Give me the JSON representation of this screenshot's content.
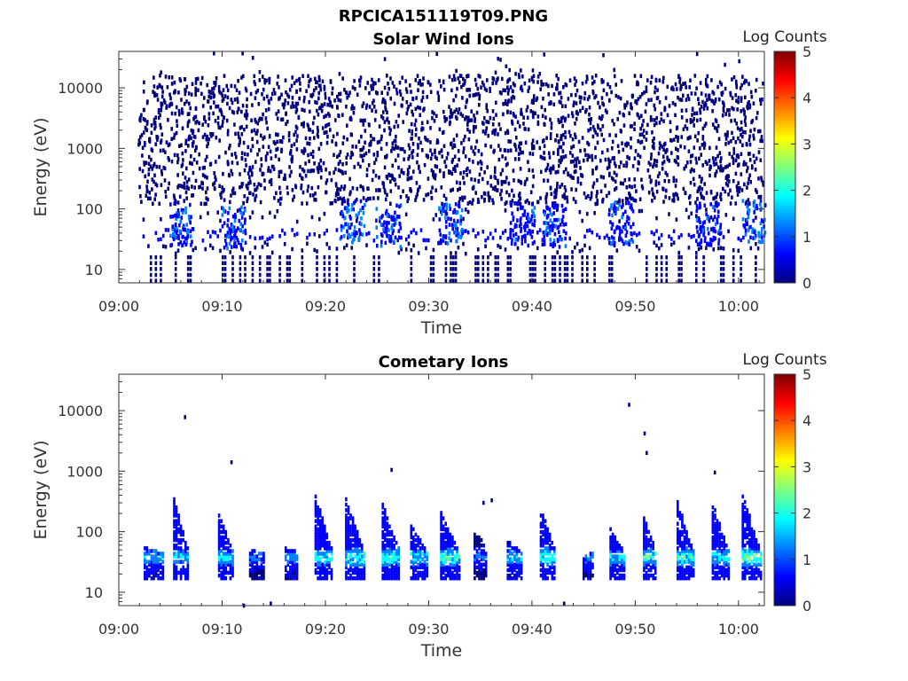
{
  "figure": {
    "title": "RPCICA151119T09.PNG"
  },
  "colormap": [
    "#00007f",
    "#0000ff",
    "#007fff",
    "#00ffff",
    "#7fff7f",
    "#ffff00",
    "#ff7f00",
    "#ff0000",
    "#7f0000"
  ],
  "chart_data": [
    {
      "type": "heatmap",
      "title": "Solar Wind Ions",
      "xlabel": "Time",
      "ylabel": "Energy (eV)",
      "x_ticks": [
        "09:00",
        "09:10",
        "09:20",
        "09:30",
        "09:40",
        "09:50",
        "10:00"
      ],
      "x_tick_minutes": [
        0,
        10,
        20,
        30,
        40,
        50,
        60
      ],
      "xlim_minutes": [
        0,
        62.5
      ],
      "y_scale": "log",
      "y_ticks": [
        "10",
        "100",
        "1000",
        "10000"
      ],
      "y_tick_values": [
        10,
        100,
        1000,
        10000
      ],
      "ylim": [
        6,
        40000
      ],
      "colorbar": {
        "label": "Log Counts",
        "ticks": [
          "0",
          "1",
          "2",
          "3",
          "4",
          "5"
        ],
        "range": [
          0,
          5
        ]
      },
      "data_extent_minutes": [
        1.8,
        62.3
      ],
      "description_points": [
        {
          "t": 6.0,
          "e": 40,
          "v": 1.3
        },
        {
          "t": 11.0,
          "e": 35,
          "v": 1.1
        },
        {
          "t": 22.5,
          "e": 45,
          "v": 1.4
        },
        {
          "t": 26.0,
          "e": 38,
          "v": 1.1
        },
        {
          "t": 32.0,
          "e": 40,
          "v": 1.2
        },
        {
          "t": 39.0,
          "e": 40,
          "v": 1.0
        },
        {
          "t": 42.0,
          "e": 38,
          "v": 1.1
        },
        {
          "t": 48.5,
          "e": 42,
          "v": 1.1
        },
        {
          "t": 57.0,
          "e": 40,
          "v": 1.0
        },
        {
          "t": 61.5,
          "e": 45,
          "v": 1.4
        }
      ]
    },
    {
      "type": "heatmap",
      "title": "Cometary Ions",
      "xlabel": "Time",
      "ylabel": "Energy (eV)",
      "x_ticks": [
        "09:00",
        "09:10",
        "09:20",
        "09:30",
        "09:40",
        "09:50",
        "10:00"
      ],
      "x_tick_minutes": [
        0,
        10,
        20,
        30,
        40,
        50,
        60
      ],
      "xlim_minutes": [
        0,
        62.5
      ],
      "y_scale": "log",
      "y_ticks": [
        "10",
        "100",
        "1000",
        "10000"
      ],
      "y_tick_values": [
        10,
        100,
        1000,
        10000
      ],
      "ylim": [
        6,
        40000
      ],
      "colorbar": {
        "label": "Log Counts",
        "ticks": [
          "0",
          "1",
          "2",
          "3",
          "4",
          "5"
        ],
        "range": [
          0,
          5
        ]
      },
      "bursts": [
        {
          "t": 3.3,
          "dur": 1.8,
          "peak": 1.7,
          "top": 55
        },
        {
          "t": 6.0,
          "dur": 1.5,
          "peak": 2.0,
          "top": 350
        },
        {
          "t": 10.3,
          "dur": 1.4,
          "peak": 2.1,
          "top": 200
        },
        {
          "t": 13.3,
          "dur": 1.4,
          "peak": 1.3,
          "top": 50
        },
        {
          "t": 16.7,
          "dur": 1.3,
          "peak": 1.6,
          "top": 55
        },
        {
          "t": 19.8,
          "dur": 1.7,
          "peak": 2.2,
          "top": 400
        },
        {
          "t": 22.8,
          "dur": 1.8,
          "peak": 2.4,
          "top": 380
        },
        {
          "t": 26.3,
          "dur": 1.7,
          "peak": 2.3,
          "top": 300
        },
        {
          "t": 29.0,
          "dur": 1.6,
          "peak": 2.0,
          "top": 130
        },
        {
          "t": 32.0,
          "dur": 1.8,
          "peak": 2.5,
          "top": 210
        },
        {
          "t": 35.0,
          "dur": 1.3,
          "peak": 1.2,
          "top": 120
        },
        {
          "t": 38.3,
          "dur": 1.5,
          "peak": 1.8,
          "top": 70
        },
        {
          "t": 41.5,
          "dur": 1.5,
          "peak": 2.5,
          "top": 250
        },
        {
          "t": 45.4,
          "dur": 1.0,
          "peak": 1.4,
          "top": 40
        },
        {
          "t": 48.2,
          "dur": 1.4,
          "peak": 2.0,
          "top": 110
        },
        {
          "t": 51.4,
          "dur": 1.3,
          "peak": 2.3,
          "top": 170
        },
        {
          "t": 54.8,
          "dur": 1.6,
          "peak": 2.4,
          "top": 320
        },
        {
          "t": 58.2,
          "dur": 1.6,
          "peak": 2.2,
          "top": 300
        },
        {
          "t": 61.2,
          "dur": 1.8,
          "peak": 2.7,
          "top": 420
        }
      ]
    }
  ]
}
